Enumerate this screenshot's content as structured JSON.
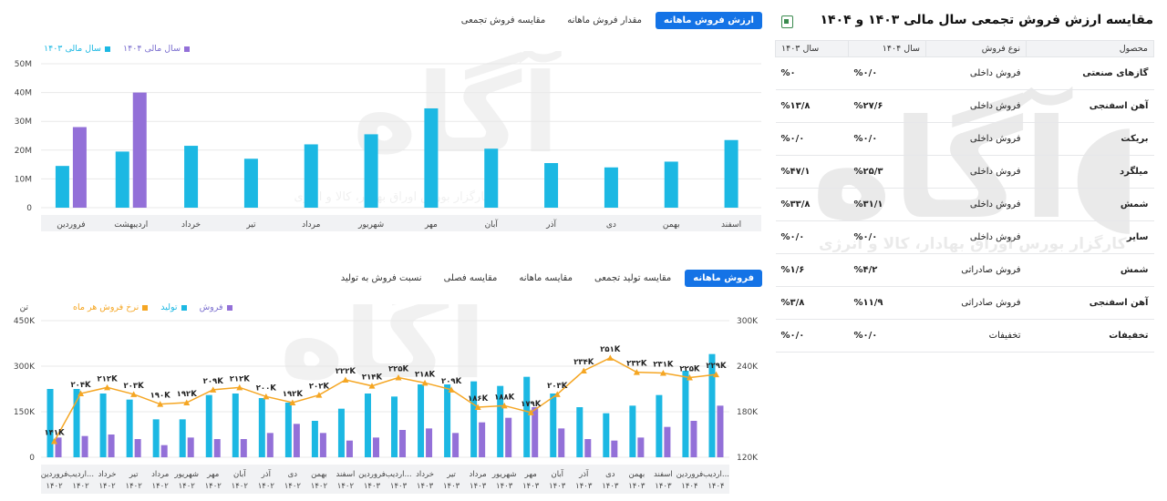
{
  "top_chart": {
    "tabs": [
      "ارزش فروش ماهانه",
      "مقدار فروش ماهانه",
      "مقایسه فروش تجمعی"
    ],
    "active_tab": 0,
    "legend": [
      {
        "label": "سال مالی ۱۴۰۴",
        "color": "#9370d8"
      },
      {
        "label": "سال مالی ۱۴۰۳",
        "color": "#1cb8e3"
      }
    ]
  },
  "bottom_chart": {
    "tabs": [
      "فروش ماهانه",
      "مقایسه تولید تجمعی",
      "مقایسه ماهانه",
      "مقایسه فصلی",
      "نسبت فروش به تولید"
    ],
    "active_tab": 0,
    "legend": [
      {
        "label": "فروش",
        "color": "#9370d8"
      },
      {
        "label": "تولید",
        "color": "#1cb8e3"
      },
      {
        "label": "نرخ فروش هر ماه",
        "color": "#f5a623"
      }
    ],
    "left_unit": "تن"
  },
  "chart_data": [
    {
      "type": "bar",
      "categories": [
        "فروردین",
        "اردیبهشت",
        "خرداد",
        "تیر",
        "مرداد",
        "شهریور",
        "مهر",
        "آبان",
        "آذر",
        "دی",
        "بهمن",
        "اسفند"
      ],
      "series": [
        {
          "name": "سال مالی ۱۴۰۳",
          "color": "#1cb8e3",
          "values": [
            14.5,
            19.5,
            21.5,
            17,
            22,
            25.5,
            34.5,
            20.5,
            15.5,
            14,
            16,
            23.5
          ]
        },
        {
          "name": "سال مالی ۱۴۰۴",
          "color": "#9370d8",
          "values": [
            28,
            40,
            null,
            null,
            null,
            null,
            null,
            null,
            null,
            null,
            null,
            null
          ]
        }
      ],
      "ylim": [
        0,
        50
      ],
      "yticks": [
        "0",
        "10M",
        "20M",
        "30M",
        "40M",
        "50M"
      ],
      "grid": true
    },
    {
      "type": "bar",
      "categories": [
        "فروردین\n۱۴۰۲",
        "اردیب...\n۱۴۰۲",
        "خرداد\n۱۴۰۲",
        "تیر\n۱۴۰۲",
        "مرداد\n۱۴۰۲",
        "شهریور\n۱۴۰۲",
        "مهر\n۱۴۰۲",
        "آبان\n۱۴۰۲",
        "آذر\n۱۴۰۲",
        "دی\n۱۴۰۲",
        "بهمن\n۱۴۰۲",
        "اسفند\n۱۴۰۲",
        "فروردین\n۱۴۰۳",
        "اردیب...\n۱۴۰۳",
        "خرداد\n۱۴۰۳",
        "تیر\n۱۴۰۳",
        "مرداد\n۱۴۰۳",
        "شهریور\n۱۴۰۳",
        "مهر\n۱۴۰۳",
        "آبان\n۱۴۰۳",
        "آذر\n۱۴۰۳",
        "دی\n۱۴۰۳",
        "بهمن\n۱۴۰۳",
        "اسفند\n۱۴۰۳",
        "فروردین\n۱۴۰۴",
        "اردیب...\n۱۴۰۴"
      ],
      "series": [
        {
          "name": "تولید",
          "color": "#1cb8e3",
          "axis": "left",
          "values": [
            225,
            225,
            210,
            190,
            125,
            125,
            205,
            210,
            195,
            180,
            120,
            160,
            210,
            200,
            240,
            240,
            250,
            235,
            265,
            210,
            165,
            145,
            170,
            205,
            285,
            340
          ]
        },
        {
          "name": "فروش",
          "color": "#9370d8",
          "axis": "left",
          "values": [
            65,
            70,
            75,
            60,
            40,
            65,
            60,
            60,
            80,
            110,
            80,
            55,
            65,
            90,
            95,
            80,
            115,
            130,
            165,
            95,
            60,
            55,
            65,
            100,
            120,
            170
          ]
        },
        {
          "name": "نرخ فروش هر ماه",
          "color": "#f5a623",
          "axis": "right",
          "values": [
            141,
            204,
            212,
            203,
            190,
            192,
            209,
            212,
            200,
            192,
            202,
            222,
            214,
            225,
            218,
            209,
            186,
            188,
            179,
            203,
            234,
            251,
            232,
            231,
            225,
            229
          ],
          "labels": [
            "۱۴۱K",
            "۲۰۴K",
            "۲۱۲K",
            "۲۰۳K",
            "۱۹۰K",
            "۱۹۲K",
            "۲۰۹K",
            "۲۱۲K",
            "۲۰۰K",
            "۱۹۲K",
            "۲۰۲K",
            "۲۲۲K",
            "۲۱۴K",
            "۲۲۵K",
            "۲۱۸K",
            "۲۰۹K",
            "۱۸۶K",
            "۱۸۸K",
            "۱۷۹K",
            "۲۰۳K",
            "۲۳۴K",
            "۲۵۱K",
            "۲۳۲K",
            "۲۳۱K",
            "۲۲۵K",
            "۲۲۹K"
          ]
        }
      ],
      "ylim_left": [
        0,
        450
      ],
      "yticks_left": [
        "0",
        "150K",
        "300K",
        "450K"
      ],
      "ylim_right": [
        120,
        300
      ],
      "yticks_right": [
        "120K",
        "180K",
        "240K",
        "300K"
      ],
      "grid": true
    }
  ],
  "panel": {
    "title": "مقایسه ارزش فروش تجمعی سال مالی ۱۴۰۳ و ۱۴۰۴",
    "headers": {
      "product": "محصول",
      "type": "نوع فروش",
      "y1404": "سال ۱۴۰۴",
      "y1403": "سال ۱۴۰۳"
    },
    "rows": [
      {
        "product": "گازهای صنعتی",
        "type": "فروش داخلی",
        "y1404": "%۰/۰",
        "y1403": "%۰"
      },
      {
        "product": "آهن اسفنجی",
        "type": "فروش داخلی",
        "y1404": "%۲۷/۶",
        "y1403": "%۱۳/۸"
      },
      {
        "product": "بریکت",
        "type": "فروش داخلی",
        "y1404": "%۰/۰",
        "y1403": "%۰/۰"
      },
      {
        "product": "میلگرد",
        "type": "فروش داخلی",
        "y1404": "%۲۵/۳",
        "y1403": "%۴۷/۱"
      },
      {
        "product": "شمش",
        "type": "فروش داخلی",
        "y1404": "%۳۱/۱",
        "y1403": "%۳۳/۸"
      },
      {
        "product": "سایر",
        "type": "فروش داخلی",
        "y1404": "%۰/۰",
        "y1403": "%۰/۰"
      },
      {
        "product": "شمش",
        "type": "فروش صادراتی",
        "y1404": "%۴/۲",
        "y1403": "%۱/۶"
      },
      {
        "product": "آهن اسفنجی",
        "type": "فروش صادراتی",
        "y1404": "%۱۱/۹",
        "y1403": "%۳/۸"
      },
      {
        "product": "تخفیفات",
        "type": "تخفیفات",
        "y1404": "%۰/۰",
        "y1403": "%۰/۰"
      }
    ]
  },
  "watermark": {
    "logo": "آگاه",
    "tagline": "کارگزار بورس اوراق بهادار، کالا و انرژی"
  }
}
